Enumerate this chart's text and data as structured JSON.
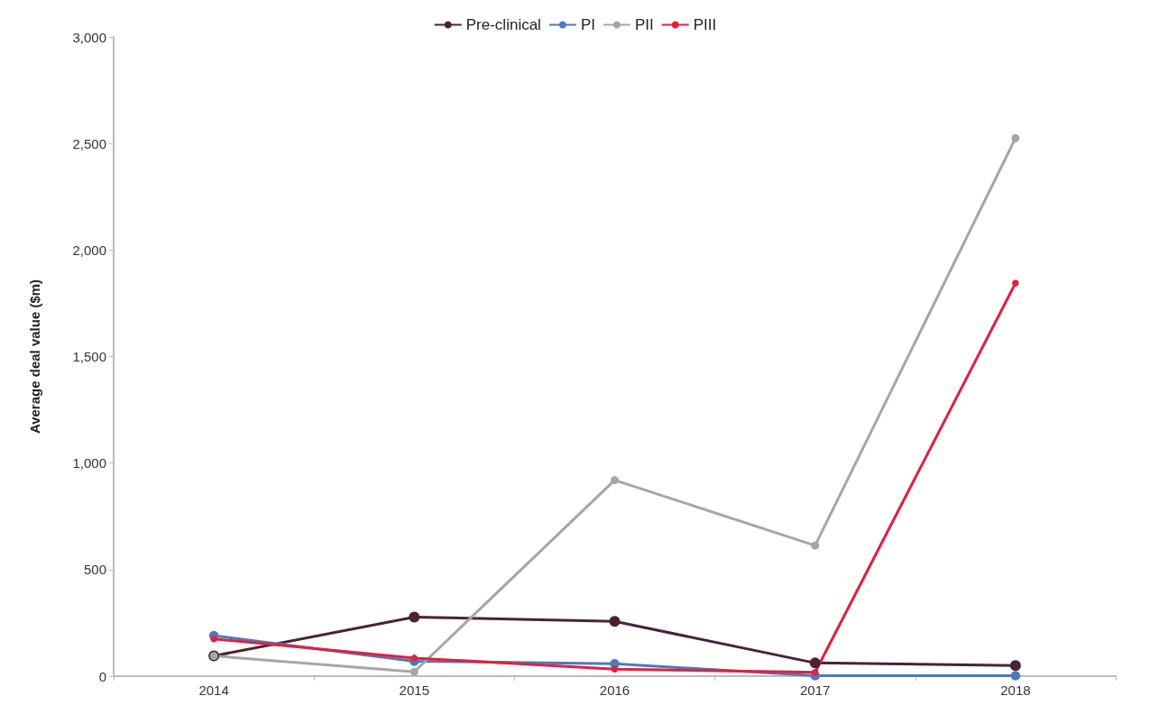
{
  "chart_data": {
    "type": "line",
    "ylabel": "Average deal value ($m)",
    "categories": [
      "2014",
      "2015",
      "2016",
      "2017",
      "2018"
    ],
    "series": [
      {
        "name": "Pre-clinical",
        "color": "#4a2236",
        "values": [
          95,
          277,
          257,
          62,
          50
        ]
      },
      {
        "name": "PI",
        "color": "#4f79b8",
        "values": [
          190,
          70,
          58,
          2,
          2
        ]
      },
      {
        "name": "PII",
        "color": "#a6a6a6",
        "values": [
          95,
          20,
          920,
          613,
          2525
        ]
      },
      {
        "name": "PIII",
        "color": "#e0203f",
        "values": [
          175,
          85,
          33,
          18,
          1845
        ]
      }
    ],
    "ylim": [
      0,
      3000
    ],
    "yticks": [
      {
        "value": 0,
        "label": "0"
      },
      {
        "value": 500,
        "label": "500"
      },
      {
        "value": 1000,
        "label": "1,000"
      },
      {
        "value": 1500,
        "label": "1,500"
      },
      {
        "value": 2000,
        "label": "2,000"
      },
      {
        "value": 2500,
        "label": "2,500"
      },
      {
        "value": 3000,
        "label": "3,000"
      }
    ],
    "grid": false,
    "legend": "top",
    "marker": "circle",
    "line_style": "solid"
  }
}
